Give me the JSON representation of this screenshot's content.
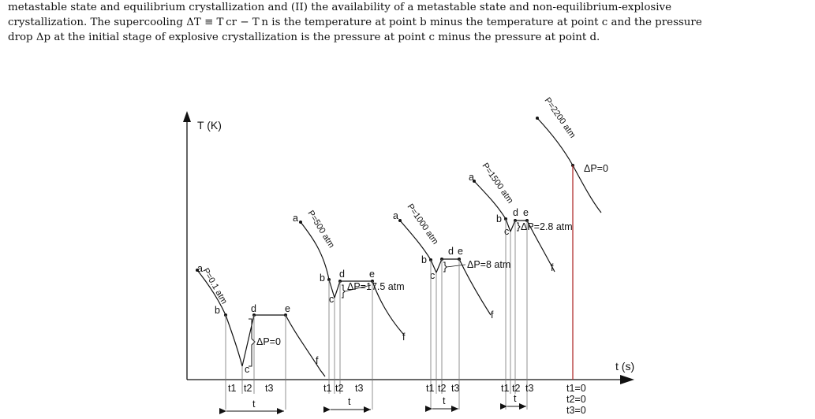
{
  "caption": {
    "line1": "metastable state and equilibrium crystallization and (II) the availability of a metastable state and non-equilibrium-explosive",
    "line2": "crystallization. The supercooling ΔT ≡ T cr − T n is the temperature at point b minus the temperature at point c and the pressure",
    "line3": "drop Δp at the initial stage of explosive crystallization is the pressure at point c minus the pressure at point d."
  },
  "figure": {
    "y_axis_label": "T (K)",
    "x_axis_label": "t (s)",
    "point_labels": [
      "a",
      "b",
      "c",
      "d",
      "e",
      "f"
    ],
    "pressures": [
      "P=0.1 atm",
      "P=500 atm",
      "P=1000 atm",
      "P=1500 atm",
      "P=2200 atm"
    ],
    "delta_p": [
      "ΔP=0",
      "ΔP=17.5 atm",
      "ΔP=8 atm",
      "ΔP=2.8 atm",
      "ΔP=0"
    ],
    "t_labels": {
      "t1": "t1",
      "t2": "t2",
      "t3": "t3",
      "t": "t"
    },
    "last_t_labels": [
      "t1=0",
      "t2=0",
      "t3=0"
    ]
  },
  "colors": {
    "ink": "#111111",
    "guide": "#777777",
    "red_line": "#b03030"
  }
}
